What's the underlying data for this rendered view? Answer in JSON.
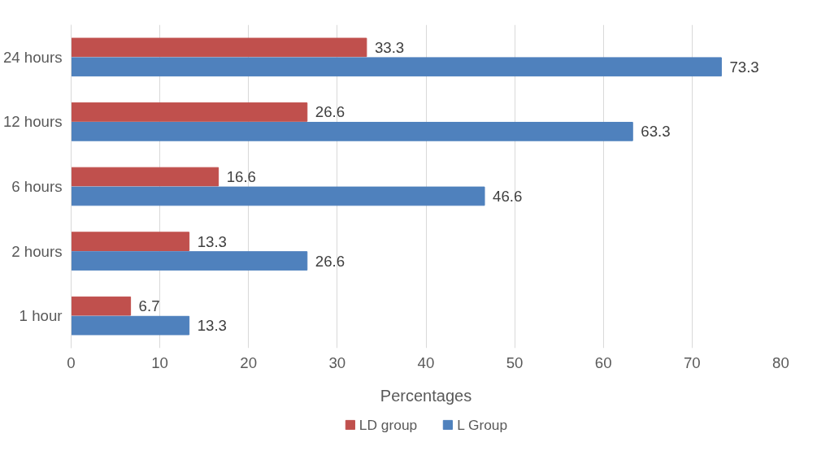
{
  "chart_data": {
    "type": "bar",
    "orientation": "horizontal",
    "xlabel": "Percentages",
    "categories": [
      "24 hours",
      "12 hours",
      "6 hours",
      "2 hours",
      "1 hour"
    ],
    "series": [
      {
        "name": "LD group",
        "color": "#c0504d",
        "values": [
          33.3,
          26.6,
          16.6,
          13.3,
          6.7
        ]
      },
      {
        "name": "L Group",
        "color": "#4f81bd",
        "values": [
          73.3,
          63.3,
          46.6,
          26.6,
          13.3
        ]
      }
    ],
    "xlim": [
      0,
      80
    ],
    "xticks": [
      0,
      10,
      20,
      30,
      40,
      50,
      60,
      70,
      80
    ],
    "grid": "x",
    "legend": "bottom",
    "data_labels": true
  }
}
